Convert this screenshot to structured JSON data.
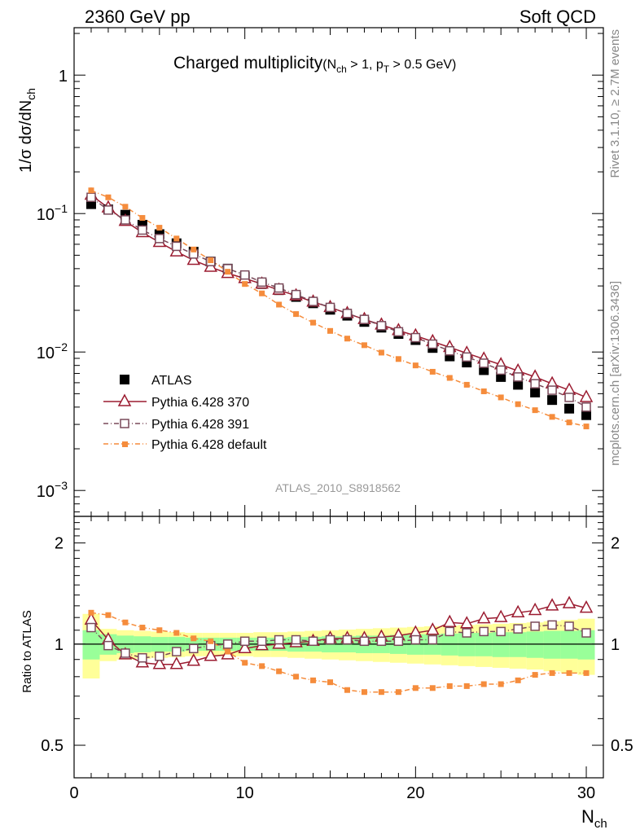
{
  "header": {
    "left": "2360 GeV pp",
    "right": "Soft QCD"
  },
  "side_labels": {
    "rivet": "Rivet 3.1.10, ≥ 2.7M events",
    "mcplots": "mcplots.cern.ch [arXiv:1306.3436]"
  },
  "watermark": "ATLAS_2010_S8918562",
  "colors": {
    "atlas": "#000000",
    "p370": "#9b1b30",
    "p391": "#7a4a5a",
    "pdef": "#f58c3c",
    "band_inner": "#99ff99",
    "band_outer": "#ffff99"
  },
  "chart_data": [
    {
      "type": "scatter",
      "title": "Charged multiplicity",
      "title_cuts": [
        "(N",
        "ch",
        " > 1, p",
        "T",
        " > 0.5 GeV)"
      ],
      "ylabel": "1/σ dσ/dN",
      "ylabel_sub": "ch",
      "yscale": "log",
      "ylim": [
        0.00065,
        2.2
      ],
      "xlim": [
        0,
        31
      ],
      "yticks": [
        {
          "value": 0.001,
          "base": "10",
          "exp": "−3"
        },
        {
          "value": 0.01,
          "base": "10",
          "exp": "−2"
        },
        {
          "value": 0.1,
          "base": "10",
          "exp": "−1"
        },
        {
          "value": 1,
          "base": "1",
          "exp": ""
        }
      ],
      "x": [
        1,
        2,
        3,
        4,
        5,
        6,
        7,
        8,
        9,
        10,
        11,
        12,
        13,
        14,
        15,
        16,
        17,
        18,
        19,
        20,
        21,
        22,
        23,
        24,
        25,
        26,
        27,
        28,
        29,
        30
      ],
      "series": [
        {
          "name": "ATLAS",
          "key": "atlas",
          "marker": "filled-square",
          "values": [
            0.117,
            0.107,
            0.098,
            0.083,
            0.071,
            0.061,
            0.053,
            0.045,
            0.04,
            0.035,
            0.031,
            0.028,
            0.025,
            0.0225,
            0.0202,
            0.0183,
            0.0165,
            0.015,
            0.0135,
            0.0122,
            0.0107,
            0.0093,
            0.0084,
            0.0074,
            0.0066,
            0.0058,
            0.0051,
            0.0045,
            0.0039,
            0.0035
          ]
        },
        {
          "name": "Pythia 6.428 370",
          "key": "p370",
          "marker": "open-triangle",
          "values": [
            0.136,
            0.11,
            0.088,
            0.073,
            0.062,
            0.053,
            0.046,
            0.041,
            0.037,
            0.034,
            0.031,
            0.028,
            0.0255,
            0.023,
            0.021,
            0.019,
            0.0172,
            0.0157,
            0.0143,
            0.0131,
            0.0119,
            0.0108,
            0.0098,
            0.0089,
            0.0081,
            0.0073,
            0.0066,
            0.0059,
            0.0053,
            0.0047
          ]
        },
        {
          "name": "Pythia 6.428 391",
          "key": "p391",
          "marker": "open-square",
          "values": [
            0.131,
            0.106,
            0.09,
            0.076,
            0.066,
            0.058,
            0.051,
            0.045,
            0.04,
            0.036,
            0.032,
            0.029,
            0.026,
            0.0232,
            0.021,
            0.019,
            0.0172,
            0.0155,
            0.014,
            0.0127,
            0.0114,
            0.0102,
            0.0092,
            0.0083,
            0.0074,
            0.0066,
            0.0059,
            0.0053,
            0.0047,
            0.004
          ]
        },
        {
          "name": "Pythia 6.428 default",
          "key": "pdef",
          "marker": "filled-small-square",
          "values": [
            0.147,
            0.131,
            0.112,
            0.093,
            0.079,
            0.066,
            0.055,
            0.046,
            0.038,
            0.031,
            0.0265,
            0.022,
            0.0188,
            0.0163,
            0.0142,
            0.0125,
            0.0112,
            0.0099,
            0.0089,
            0.008,
            0.0072,
            0.0065,
            0.0058,
            0.0052,
            0.0047,
            0.0042,
            0.0038,
            0.0034,
            0.0031,
            0.0029
          ]
        }
      ],
      "legend_position": "lower-left"
    },
    {
      "type": "scatter",
      "ylabel": "Ratio to ATLAS",
      "xlabel": "N",
      "xlabel_sub": "ch",
      "yscale": "log",
      "ylim": [
        0.4,
        2.4
      ],
      "xlim": [
        0,
        31
      ],
      "xticks": [
        0,
        10,
        20,
        30
      ],
      "yticks": [
        0.5,
        1,
        2
      ],
      "ytick_labels": [
        "0.5",
        "1",
        "2"
      ],
      "x": [
        1,
        2,
        3,
        4,
        5,
        6,
        7,
        8,
        9,
        10,
        11,
        12,
        13,
        14,
        15,
        16,
        17,
        18,
        19,
        20,
        21,
        22,
        23,
        24,
        25,
        26,
        27,
        28,
        29,
        30
      ],
      "reference_line": 1,
      "band_inner": {
        "lower": [
          0.9,
          0.93,
          0.94,
          0.945,
          0.95,
          0.95,
          0.955,
          0.955,
          0.955,
          0.955,
          0.955,
          0.955,
          0.95,
          0.95,
          0.945,
          0.945,
          0.94,
          0.94,
          0.935,
          0.93,
          0.93,
          0.925,
          0.92,
          0.92,
          0.915,
          0.915,
          0.91,
          0.905,
          0.905,
          0.9
        ],
        "upper": [
          1.1,
          1.07,
          1.06,
          1.055,
          1.05,
          1.05,
          1.045,
          1.045,
          1.045,
          1.045,
          1.045,
          1.045,
          1.05,
          1.05,
          1.055,
          1.055,
          1.06,
          1.06,
          1.065,
          1.07,
          1.07,
          1.075,
          1.08,
          1.08,
          1.085,
          1.085,
          1.09,
          1.095,
          1.095,
          1.1
        ]
      },
      "band_outer": {
        "lower": [
          0.79,
          0.89,
          0.9,
          0.905,
          0.91,
          0.915,
          0.92,
          0.92,
          0.92,
          0.92,
          0.915,
          0.915,
          0.91,
          0.905,
          0.9,
          0.895,
          0.89,
          0.885,
          0.88,
          0.875,
          0.87,
          0.865,
          0.86,
          0.855,
          0.85,
          0.845,
          0.84,
          0.83,
          0.82,
          0.81
        ],
        "upper": [
          1.23,
          1.11,
          1.1,
          1.095,
          1.09,
          1.085,
          1.08,
          1.08,
          1.08,
          1.08,
          1.085,
          1.085,
          1.09,
          1.095,
          1.1,
          1.105,
          1.11,
          1.115,
          1.12,
          1.125,
          1.13,
          1.135,
          1.14,
          1.145,
          1.15,
          1.155,
          1.16,
          1.17,
          1.18,
          1.19
        ]
      },
      "series": [
        {
          "name": "Pythia 6.428 370",
          "key": "p370",
          "marker": "open-triangle",
          "values": [
            1.18,
            1.03,
            0.93,
            0.88,
            0.87,
            0.87,
            0.89,
            0.92,
            0.93,
            0.97,
            0.99,
            1.0,
            1.01,
            1.02,
            1.04,
            1.04,
            1.04,
            1.05,
            1.06,
            1.08,
            1.1,
            1.16,
            1.15,
            1.19,
            1.2,
            1.24,
            1.26,
            1.3,
            1.32,
            1.28
          ]
        },
        {
          "name": "Pythia 6.428 391",
          "key": "p391",
          "marker": "open-square",
          "values": [
            1.12,
            0.99,
            0.94,
            0.91,
            0.92,
            0.95,
            0.97,
            0.99,
            1.0,
            1.02,
            1.02,
            1.03,
            1.03,
            1.02,
            1.03,
            1.03,
            1.02,
            1.02,
            1.02,
            1.03,
            1.03,
            1.09,
            1.08,
            1.09,
            1.09,
            1.11,
            1.13,
            1.14,
            1.13,
            1.08
          ]
        },
        {
          "name": "Pythia 6.428 default",
          "key": "pdef",
          "marker": "filled-small-square",
          "values": [
            1.24,
            1.22,
            1.16,
            1.12,
            1.1,
            1.08,
            1.04,
            1.02,
            0.95,
            0.88,
            0.86,
            0.83,
            0.8,
            0.78,
            0.77,
            0.73,
            0.72,
            0.72,
            0.72,
            0.74,
            0.74,
            0.75,
            0.75,
            0.76,
            0.76,
            0.78,
            0.81,
            0.82,
            0.82,
            0.82
          ]
        }
      ]
    }
  ]
}
